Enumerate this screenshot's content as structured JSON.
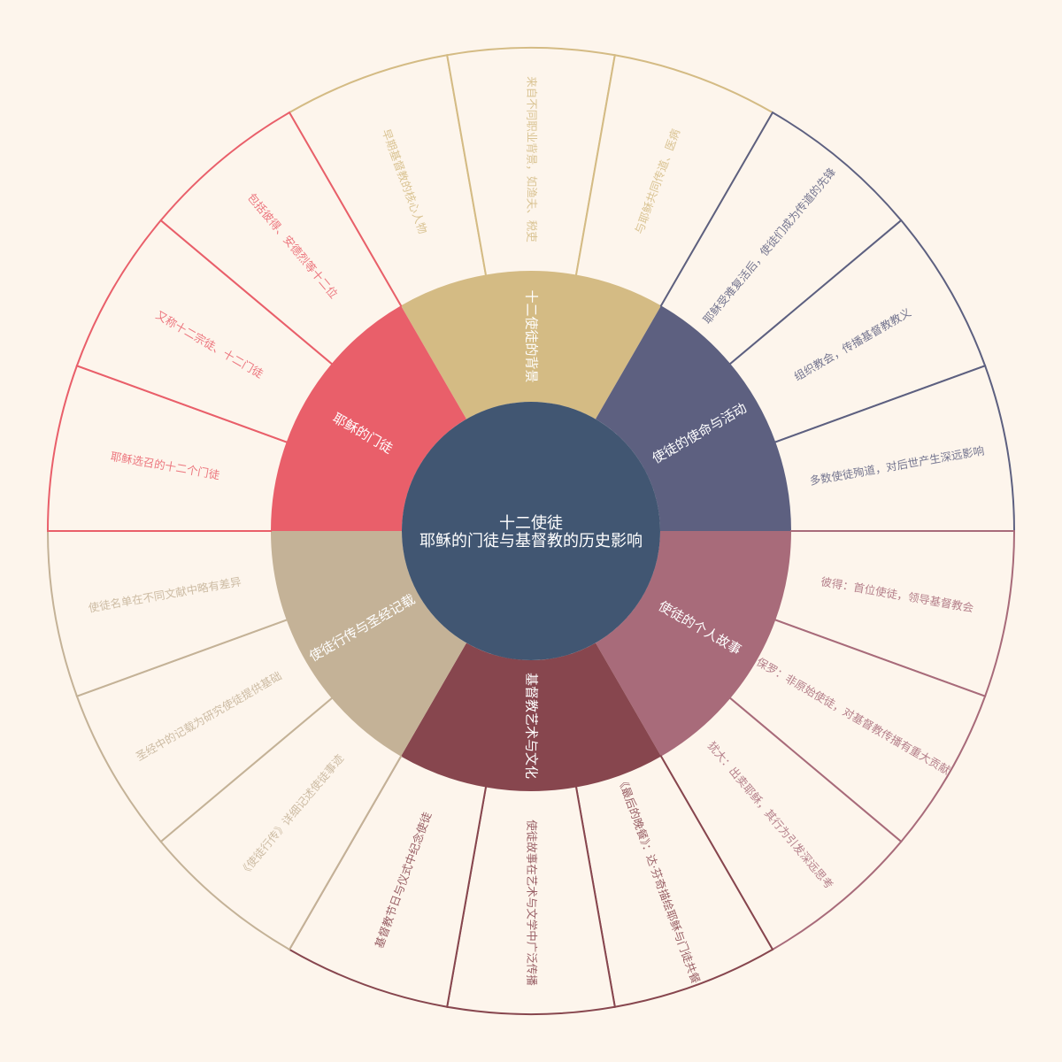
{
  "center": {
    "title": "十二使徒",
    "subtitle": "耶稣的门徒与基督教的历史影响",
    "color": "#415672"
  },
  "background_color": "#fdf5ec",
  "categories": [
    {
      "label": "十二使徒的背景",
      "color": "#d4bb84",
      "leaves": [
        "早期基督教的核心人物",
        "来自不同职业背景，如渔夫、税吏",
        "与耶稣共同传道、医病"
      ]
    },
    {
      "label": "使徒的使命与活动",
      "color": "#5d6080",
      "leaves": [
        "耶稣受难复活后，使徒们成为传道的先锋",
        "组织教会，传播基督教教义",
        "多数使徒殉道，对后世产生深远影响"
      ]
    },
    {
      "label": "使徒的个人故事",
      "color": "#a86b7a",
      "leaves": [
        "彼得：首位使徒，领导基督教会",
        "保罗：非原始使徒，对基督教传播有重大贡献",
        "犹大：出卖耶稣，其行为引发深远思考"
      ]
    },
    {
      "label": "基督教艺术与文化",
      "color": "#87464e",
      "leaves": [
        "《最后的晚餐》：达·芬奇描绘耶稣与门徒共餐",
        "使徒故事在艺术与文学中广泛传播",
        "基督教节日与仪式中纪念使徒"
      ]
    },
    {
      "label": "使徒行传与圣经记载",
      "color": "#c4b297",
      "leaves": [
        "《使徒行传》详细记述使徒事迹",
        "圣经中的记载为研究使徒提供基础",
        "使徒名单在不同文献中略有差异"
      ]
    },
    {
      "label": "耶稣的门徒",
      "color": "#e95f6a",
      "leaves": [
        "耶稣选召的十二个门徒",
        "又称十二宗徒、十二门徒",
        "包括彼得、安德烈等十二位"
      ]
    }
  ]
}
